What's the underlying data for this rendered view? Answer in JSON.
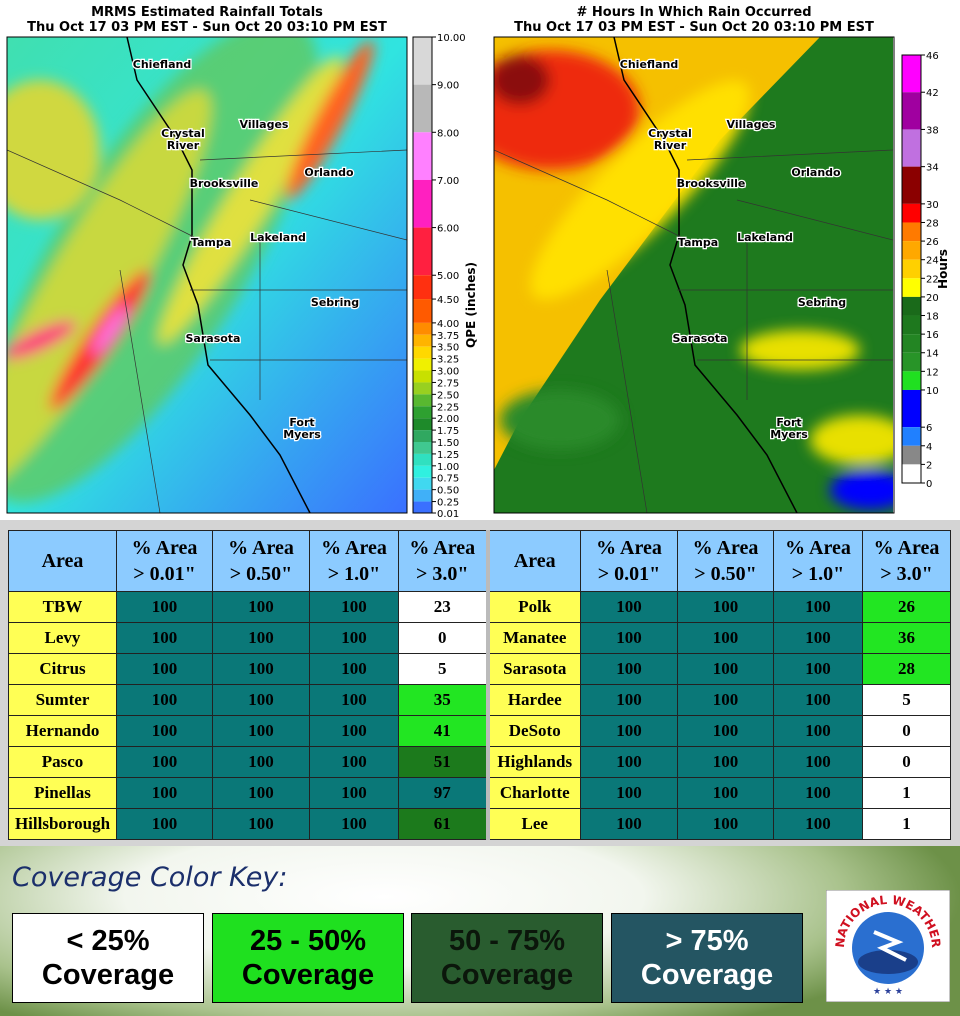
{
  "maps": [
    {
      "title": "MRMS Estimated Rainfall Totals",
      "subtitle": "Thu Oct 17 03 PM EST - Sun Oct 20 03:10 PM EST",
      "colorbar": {
        "label": "QPE (inches)",
        "ticks": [
          {
            "value": 10,
            "label": "10.00"
          },
          {
            "value": 9,
            "label": "9.00"
          },
          {
            "value": 8,
            "label": "8.00"
          },
          {
            "value": 7,
            "label": "7.00"
          },
          {
            "value": 6,
            "label": "6.00"
          },
          {
            "value": 5,
            "label": "5.00"
          },
          {
            "value": 4.5,
            "label": "4.50"
          },
          {
            "value": 4,
            "label": "4.00"
          },
          {
            "value": 3.75,
            "label": "3.75"
          },
          {
            "value": 3.5,
            "label": "3.50"
          },
          {
            "value": 3.25,
            "label": "3.25"
          },
          {
            "value": 3,
            "label": "3.00"
          },
          {
            "value": 2.75,
            "label": "2.75"
          },
          {
            "value": 2.5,
            "label": "2.50"
          },
          {
            "value": 2.25,
            "label": "2.25"
          },
          {
            "value": 2,
            "label": "2.00"
          },
          {
            "value": 1.75,
            "label": "1.75"
          },
          {
            "value": 1.5,
            "label": "1.50"
          },
          {
            "value": 1.25,
            "label": "1.25"
          },
          {
            "value": 1,
            "label": "1.00"
          },
          {
            "value": 0.75,
            "label": "0.75"
          },
          {
            "value": 0.5,
            "label": "0.50"
          },
          {
            "value": 0.25,
            "label": "0.25"
          },
          {
            "value": 0.01,
            "label": "0.01"
          }
        ],
        "colors": [
          "#d8d8d8",
          "#b8b8b8",
          "#ff80ff",
          "#ff20c0",
          "#ff2040",
          "#ff3010",
          "#ff5a00",
          "#ff8c00",
          "#ffb400",
          "#ffd800",
          "#f0f000",
          "#c8e000",
          "#98d020",
          "#58b830",
          "#2ea030",
          "#1e8a2a",
          "#30a860",
          "#40c890",
          "#30e0c0",
          "#30f0e0",
          "#40d8f0",
          "#40b0f8",
          "#3a70ff"
        ]
      },
      "places": [
        "Chiefland",
        "Crystal River",
        "Villages",
        "Brooksville",
        "Orlando",
        "Tampa",
        "Lakeland",
        "Sebring",
        "Sarasota",
        "Fort Myers"
      ]
    },
    {
      "title": "# Hours In Which Rain Occurred",
      "subtitle": "Thu Oct 17 03 PM EST - Sun Oct 20 03:10 PM EST",
      "colorbar": {
        "label": "Hours",
        "ticks": [
          46,
          42,
          38,
          34,
          30,
          28,
          26,
          24,
          22,
          20,
          18,
          16,
          14,
          12,
          10,
          6,
          4,
          2,
          0
        ],
        "colors": [
          "#ff00ff",
          "#a000a0",
          "#c070e0",
          "#8b0000",
          "#ff0000",
          "#ff7a00",
          "#ffa800",
          "#ffd000",
          "#ffff00",
          "#1a6a1a",
          "#1e781e",
          "#238523",
          "#289428",
          "#20e020",
          "#0000ff",
          "#2080ff",
          "#888888",
          "#ffffff"
        ]
      },
      "places": [
        "Chiefland",
        "Crystal River",
        "Villages",
        "Brooksville",
        "Orlando",
        "Tampa",
        "Lakeland",
        "Sebring",
        "Sarasota",
        "Fort Myers"
      ]
    }
  ],
  "table": {
    "header": [
      [
        "Area"
      ],
      [
        "% Area",
        "> 0.01\""
      ],
      [
        "% Area",
        "> 0.50\""
      ],
      [
        "% Area",
        "> 1.0\""
      ],
      [
        "% Area",
        "> 3.0\""
      ]
    ],
    "left_rows": [
      [
        "TBW",
        100,
        100,
        100,
        23
      ],
      [
        "Levy",
        100,
        100,
        100,
        0
      ],
      [
        "Citrus",
        100,
        100,
        100,
        5
      ],
      [
        "Sumter",
        100,
        100,
        100,
        35
      ],
      [
        "Hernando",
        100,
        100,
        100,
        41
      ],
      [
        "Pasco",
        100,
        100,
        100,
        51
      ],
      [
        "Pinellas",
        100,
        100,
        100,
        97
      ],
      [
        "Hillsborough",
        100,
        100,
        100,
        61
      ]
    ],
    "right_rows": [
      [
        "Polk",
        100,
        100,
        100,
        26
      ],
      [
        "Manatee",
        100,
        100,
        100,
        36
      ],
      [
        "Sarasota",
        100,
        100,
        100,
        28
      ],
      [
        "Hardee",
        100,
        100,
        100,
        5
      ],
      [
        "DeSoto",
        100,
        100,
        100,
        0
      ],
      [
        "Highlands",
        100,
        100,
        100,
        0
      ],
      [
        "Charlotte",
        100,
        100,
        100,
        1
      ],
      [
        "Lee",
        100,
        100,
        100,
        1
      ]
    ]
  },
  "key": {
    "title": "Coverage Color Key:",
    "thresholds": [
      25,
      50,
      75
    ],
    "items": [
      {
        "lines": [
          "< 25%",
          "Coverage"
        ],
        "color": "#ffffff",
        "text_color": "#000000",
        "table_color": "#ffffff"
      },
      {
        "lines": [
          "25 - 50%",
          "Coverage"
        ],
        "color": "#1fe01f",
        "text_color": "#000000",
        "table_color": "#22e622"
      },
      {
        "lines": [
          "50 - 75%",
          "Coverage"
        ],
        "color": "#295c2f",
        "text_color": "#0b160b",
        "table_color": "#1c7a1c"
      },
      {
        "lines": [
          "> 75%",
          "Coverage"
        ],
        "color": "#245562",
        "text_color": "#ffffff",
        "table_color": "#0a7878"
      }
    ]
  },
  "logo": {
    "text": "NATIONAL WEATHER SERVICE"
  }
}
